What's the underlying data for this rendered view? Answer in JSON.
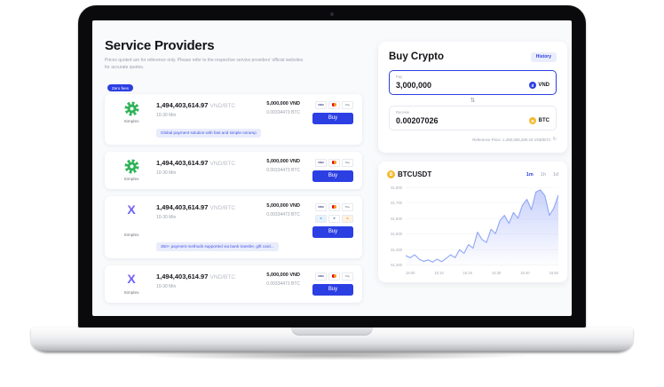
{
  "header": {
    "title": "Service Providers",
    "subtitle": "Prices quoted are for reference only. Please refer to the respective service providers' official websites for accurate quotes."
  },
  "badge": "Zero fees",
  "providers": [
    {
      "name": "Simplex",
      "icon": "gear-green",
      "price": "1,494,403,614.97",
      "pair": "VND/BTC",
      "time": "10-30 Min",
      "amount": "5,000,000 VND",
      "crypto": "0.00334473 BTC",
      "buy": "Buy",
      "banner": "Global payment solution with fast and simple onramp"
    },
    {
      "name": "Simplex",
      "icon": "gear-green",
      "price": "1,494,403,614.97",
      "pair": "VND/BTC",
      "time": "10-30 Min",
      "amount": "5,000,000 VND",
      "crypto": "0.00334473 BTC",
      "buy": "Buy"
    },
    {
      "name": "Simplex",
      "icon": "x-gradient",
      "price": "1,494,403,614.97",
      "pair": "VND/BTC",
      "time": "10-30 Min",
      "amount": "5,000,000 VND",
      "crypto": "0.00334473 BTC",
      "buy": "Buy",
      "banner": "350+ payment methods supported via bank transfer, gift card..."
    },
    {
      "name": "Simplex",
      "icon": "x-gradient",
      "price": "1,494,403,614.97",
      "pair": "VND/BTC",
      "time": "10-30 Min",
      "amount": "5,000,000 VND",
      "crypto": "0.00334473 BTC",
      "buy": "Buy"
    }
  ],
  "buy_panel": {
    "title": "Buy Crypto",
    "history_label": "History",
    "pay_label": "Pay",
    "pay_value": "3,000,000",
    "pay_currency": "VND",
    "receive_label": "Receive",
    "receive_value": "0.00207026",
    "receive_currency": "BTC",
    "reference": "Reference Price: 1,450,939,280.43 VND/BTC"
  },
  "chart_panel": {
    "symbol": "BTCUSDT",
    "tabs": [
      "1m",
      "1h",
      "1d"
    ],
    "active_tab": "1m"
  },
  "chart_data": {
    "type": "area",
    "title": "BTCUSDT",
    "x_labels": [
      "15:00",
      "15:10",
      "15:20",
      "15:30",
      "15:40",
      "15:50"
    ],
    "y_labels": [
      "61,800",
      "61,700",
      "61,600",
      "61,500",
      "61,400",
      "61,300"
    ],
    "ylim": [
      61300,
      61860
    ],
    "values": [
      61380,
      61365,
      61385,
      61355,
      61340,
      61350,
      61335,
      61355,
      61338,
      61360,
      61385,
      61365,
      61420,
      61395,
      61455,
      61430,
      61540,
      61490,
      61470,
      61560,
      61530,
      61620,
      61655,
      61600,
      61675,
      61635,
      61725,
      61765,
      61695,
      61815,
      61830,
      61790,
      61655,
      61705,
      61795
    ],
    "grid": true,
    "legend": "none",
    "line_color": "#8ea6f5",
    "fill_color": "rgba(110,135,245,0.38)"
  },
  "icons": {
    "visa_label": "VISA",
    "generic_card_label": "Pay",
    "swap_glyph": "⇅",
    "refresh_glyph": "↻",
    "vnd_symbol": "đ",
    "btc_symbol": "B",
    "x_logo_glyph": "X"
  },
  "colors": {
    "accent_blue": "#2c3fe3",
    "banner_bg": "#e9ecfb",
    "green_provider": "#2eb258",
    "btc_orange": "#f3ba2f",
    "chart_line": "#8ea6f5",
    "screen_bg": "#f9fafc"
  }
}
